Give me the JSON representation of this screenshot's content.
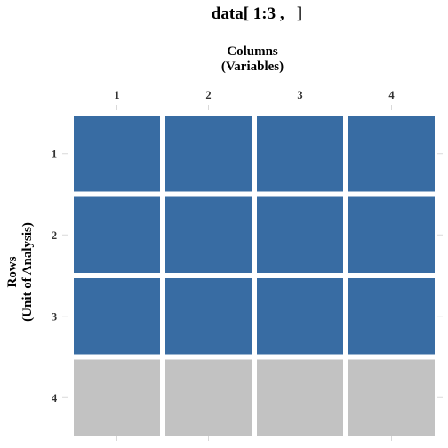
{
  "title": "data[ 1:3 ,   ]",
  "x_axis": {
    "title_line1": "Columns",
    "title_line2": "(Variables)"
  },
  "y_axis": {
    "title_line1": "Rows",
    "title_line2": "(Unit of Analysis)"
  },
  "colors": {
    "selected": "#386ca3",
    "unselected": "#c2c2c2",
    "gap": "#ffffff"
  },
  "chart_data": {
    "type": "heatmap",
    "title": "data[ 1:3 ,   ]",
    "xlabel": "Columns (Variables)",
    "ylabel": "Rows (Unit of Analysis)",
    "columns": [
      "1",
      "2",
      "3",
      "4"
    ],
    "rows": [
      "1",
      "2",
      "3",
      "4"
    ],
    "selected_rows": [
      "1",
      "2",
      "3"
    ],
    "cells": [
      [
        1,
        1,
        1,
        1
      ],
      [
        1,
        1,
        1,
        1
      ],
      [
        1,
        1,
        1,
        1
      ],
      [
        0,
        0,
        0,
        0
      ]
    ],
    "legend": "none",
    "grid": false
  }
}
